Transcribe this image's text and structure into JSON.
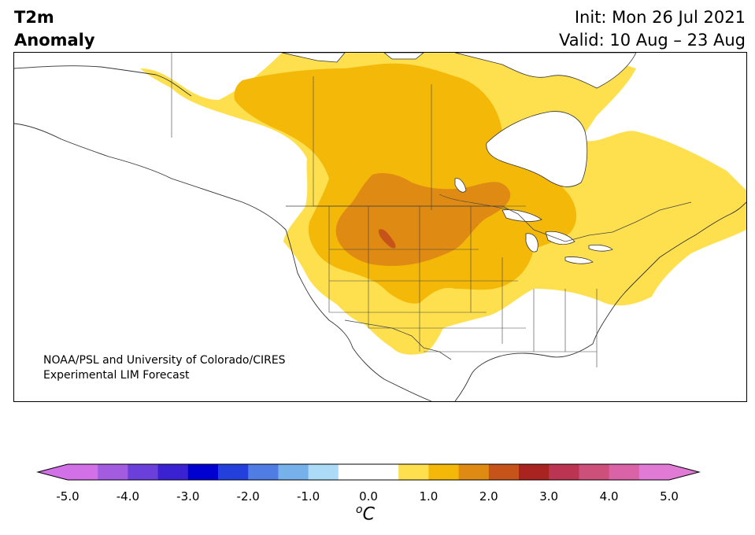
{
  "header": {
    "title_line1": "T2m",
    "title_line2": "Anomaly",
    "init_text": "Init: Mon 26 Jul 2021",
    "valid_text": "Valid: 10 Aug – 23 Aug"
  },
  "credit": {
    "line1": "NOAA/PSL and University of Colorado/CIRES",
    "line2": "Experimental LIM Forecast"
  },
  "colorbar": {
    "unit_base": "C",
    "unit_sup": "o",
    "tick_labels": [
      "-5.0",
      "-4.0",
      "-3.0",
      "-2.0",
      "-1.0",
      "0.0",
      "1.0",
      "2.0",
      "3.0",
      "4.0",
      "5.0"
    ],
    "colors": [
      "#d270e8",
      "#a35ce0",
      "#6a3fda",
      "#3a22d2",
      "#0000d0",
      "#2440dc",
      "#4f7de4",
      "#77b1ec",
      "#acdbf7",
      "#ffffff",
      "#ffffff",
      "#fee04f",
      "#f3b808",
      "#df8a12",
      "#c6541a",
      "#a92420",
      "#bb3452",
      "#cc5079",
      "#da62a6",
      "#e17ad5"
    ],
    "under_color": "#d270e8",
    "over_color": "#e17ad5",
    "min": -5.0,
    "max": 5.0,
    "step": 0.5
  },
  "map_colors": {
    "ocean": "#ffffff",
    "land": "#ffffff",
    "anom_0_5_to_1_0": "#fee04f",
    "anom_1_0_to_1_5": "#f3b808",
    "anom_1_5_to_2_0": "#df8a12",
    "anom_2_0_to_2_5": "#c6541a",
    "boundary": "#444444"
  }
}
